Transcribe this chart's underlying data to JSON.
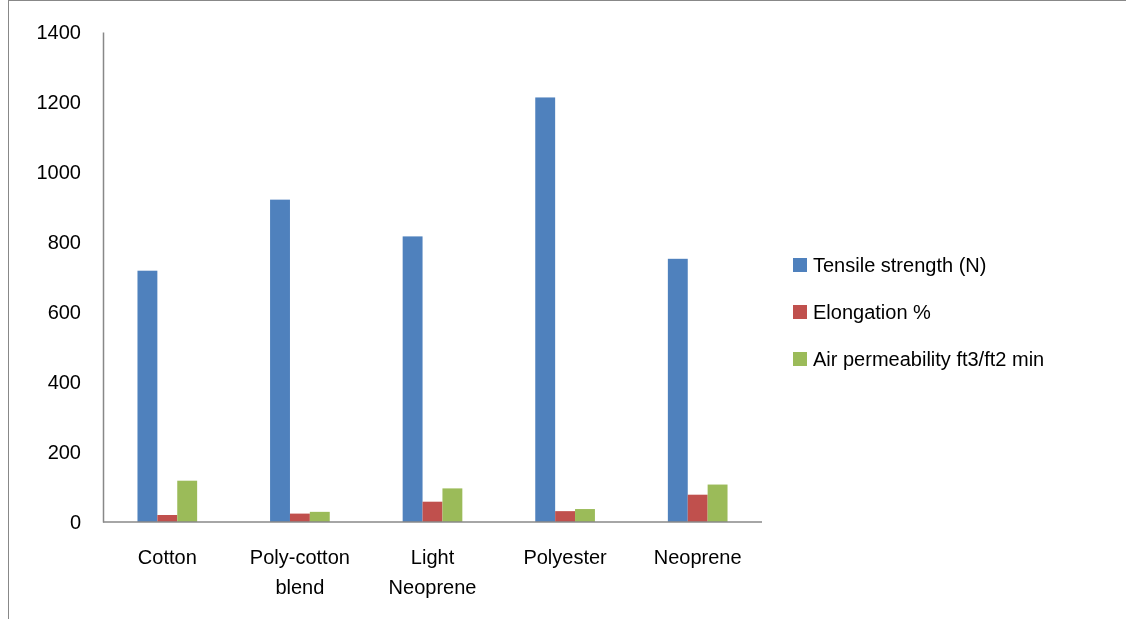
{
  "chart_data": {
    "type": "bar",
    "categories": [
      "Cotton",
      "Poly-cotton blend",
      "Light Neoprene",
      "Polyester",
      "Neoprene"
    ],
    "series": [
      {
        "name": "Tensile strength (N)",
        "color": "#4f81bd",
        "values": [
          718,
          921,
          816,
          1213,
          752
        ]
      },
      {
        "name": "Elongation %",
        "color": "#c0504d",
        "values": [
          20,
          24,
          58,
          31,
          78
        ]
      },
      {
        "name": "Air permeability ft3/ft2 min",
        "color": "#9bbb59",
        "values": [
          118,
          29,
          96,
          37,
          107
        ]
      }
    ],
    "ylim": [
      0,
      1400
    ],
    "yticks": [
      0,
      200,
      400,
      600,
      800,
      1000,
      1200,
      1400
    ],
    "grid": false,
    "legend": "right"
  }
}
